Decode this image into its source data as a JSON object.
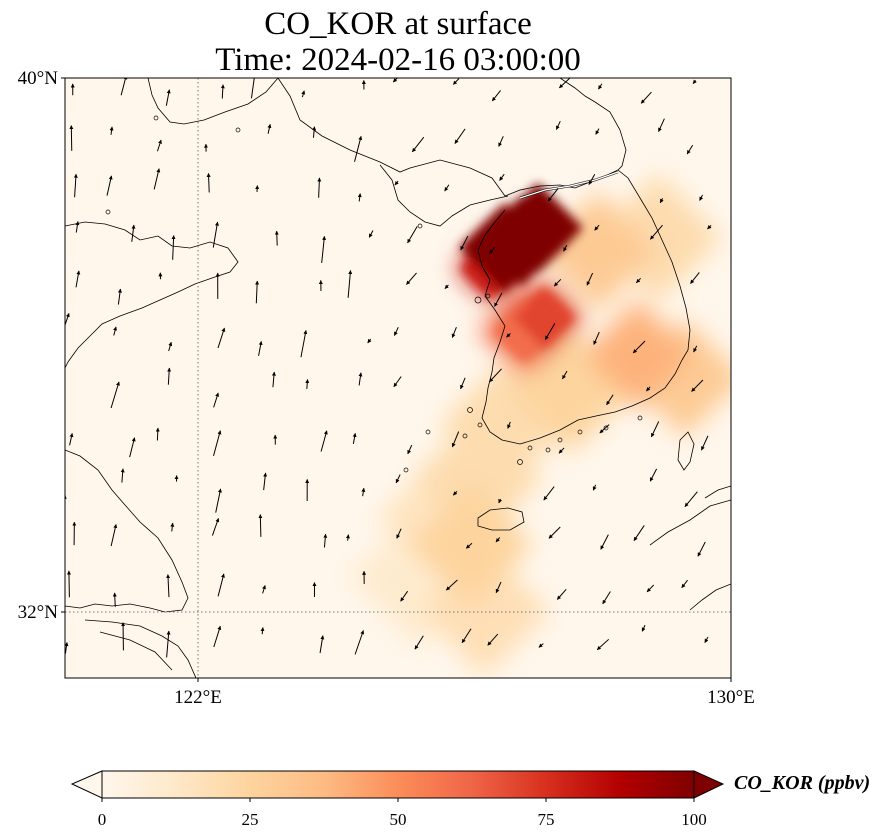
{
  "chart_data": {
    "type": "heatmap",
    "title_line1": "CO_KOR at surface",
    "title_line2": "Time: 2024-02-16 03:00:00",
    "x_ticks": [
      "122°E",
      "130°E"
    ],
    "y_ticks": [
      "40°N",
      "32°N"
    ],
    "lon_range": [
      120,
      130
    ],
    "lat_range": [
      31,
      40
    ],
    "gridlines": {
      "lons": [
        122
      ],
      "lats": [
        32
      ],
      "style": "dotted"
    },
    "colormap": "OrRd",
    "colorbar": {
      "label": "CO_KOR (ppbv)",
      "range": [
        0,
        100
      ],
      "ticks": [
        "0",
        "25",
        "50",
        "75",
        "100"
      ],
      "extend": "both",
      "stops": [
        "#fff7ec",
        "#fee8c8",
        "#fdd49e",
        "#fdbb84",
        "#fc8d59",
        "#ef6548",
        "#d7301f",
        "#b30000",
        "#7f0000"
      ]
    },
    "plume_ppbv": [
      {
        "lon": 126.85,
        "lat": 37.55,
        "value": 100
      },
      {
        "lon": 126.6,
        "lat": 37.45,
        "value": 100
      },
      {
        "lon": 127.1,
        "lat": 37.75,
        "value": 100
      },
      {
        "lon": 126.4,
        "lat": 37.15,
        "value": 80
      },
      {
        "lon": 127.2,
        "lat": 36.4,
        "value": 70
      },
      {
        "lon": 126.9,
        "lat": 36.2,
        "value": 60
      },
      {
        "lon": 128.6,
        "lat": 35.85,
        "value": 40
      },
      {
        "lon": 129.3,
        "lat": 35.5,
        "value": 30
      },
      {
        "lon": 127.6,
        "lat": 35.3,
        "value": 25
      },
      {
        "lon": 128.0,
        "lat": 37.4,
        "value": 30
      },
      {
        "lon": 128.9,
        "lat": 37.6,
        "value": 20
      },
      {
        "lon": 126.6,
        "lat": 34.8,
        "value": 20
      },
      {
        "lon": 126.2,
        "lat": 34.0,
        "value": 20
      },
      {
        "lon": 126.1,
        "lat": 33.0,
        "value": 25
      },
      {
        "lon": 126.3,
        "lat": 32.0,
        "value": 18
      },
      {
        "lon": 125.7,
        "lat": 33.4,
        "value": 15
      },
      {
        "lon": 125.3,
        "lat": 32.5,
        "value": 10
      }
    ]
  }
}
